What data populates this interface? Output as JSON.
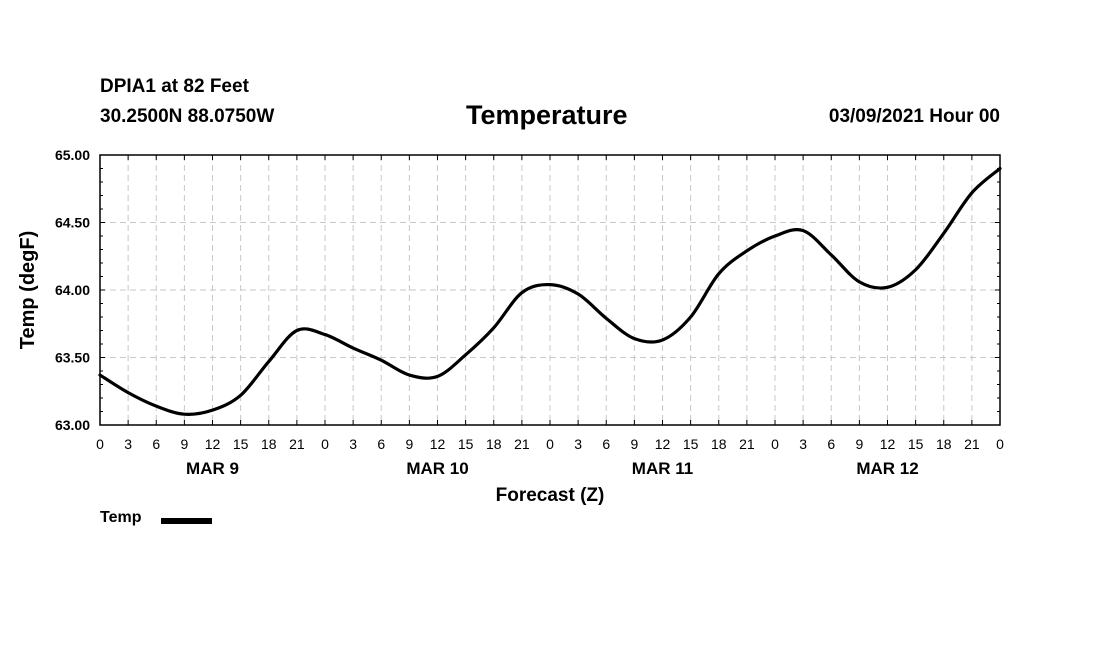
{
  "header": {
    "station": "DPIA1 at 82 Feet",
    "coords": "30.2500N 88.0750W",
    "title": "Temperature",
    "datetime": "03/09/2021 Hour 00"
  },
  "legend": {
    "label": "Temp"
  },
  "chart_data": {
    "type": "line",
    "title": "Temperature",
    "xlabel": "Forecast (Z)",
    "ylabel": "Temp (degF)",
    "ylim": [
      63.0,
      65.0
    ],
    "yticks": [
      "63.00",
      "63.50",
      "64.00",
      "64.50",
      "65.00"
    ],
    "xlim": [
      0,
      96
    ],
    "xtick_step_hours": 3,
    "xtick_labels": [
      "0",
      "3",
      "6",
      "9",
      "12",
      "15",
      "18",
      "21",
      "0",
      "3",
      "6",
      "9",
      "12",
      "15",
      "18",
      "21",
      "0",
      "3",
      "6",
      "9",
      "12",
      "15",
      "18",
      "21",
      "0",
      "3",
      "6",
      "9",
      "12",
      "15",
      "18",
      "21",
      "0"
    ],
    "day_labels": [
      {
        "label": "MAR 9",
        "hour": 12
      },
      {
        "label": "MAR 10",
        "hour": 36
      },
      {
        "label": "MAR 11",
        "hour": 60
      },
      {
        "label": "MAR 12",
        "hour": 84
      }
    ],
    "grid": true,
    "series": [
      {
        "name": "Temp",
        "color": "#000000",
        "x": [
          0,
          3,
          6,
          9,
          12,
          15,
          18,
          21,
          24,
          27,
          30,
          33,
          36,
          39,
          42,
          45,
          48,
          51,
          54,
          57,
          60,
          63,
          66,
          69,
          72,
          75,
          78,
          81,
          84,
          87,
          90,
          93,
          96
        ],
        "values": [
          63.37,
          63.24,
          63.14,
          63.08,
          63.11,
          63.22,
          63.47,
          63.7,
          63.67,
          63.57,
          63.48,
          63.37,
          63.36,
          63.52,
          63.72,
          63.98,
          64.04,
          63.97,
          63.79,
          63.64,
          63.63,
          63.8,
          64.12,
          64.29,
          64.4,
          64.44,
          64.26,
          64.06,
          64.02,
          64.15,
          64.42,
          64.72,
          64.9
        ]
      }
    ]
  }
}
